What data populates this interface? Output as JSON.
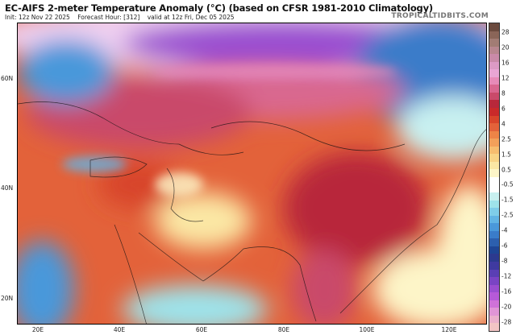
{
  "header": {
    "title": "EC-AIFS 2-meter Temperature Anomaly (°C) (based on CFSR 1981-2010 Climatology)",
    "init": "Init: 12z Nov 22 2025",
    "forecast_hour": "Forecast Hour: [312]",
    "valid": "valid at 12z Fri, Dec 05 2025",
    "brand": "TROPICALTIDBITS.COM"
  },
  "map": {
    "lat_labels": [
      "60N",
      "40N",
      "20N"
    ],
    "lon_labels": [
      "20E",
      "40E",
      "60E",
      "80E",
      "100E",
      "120E"
    ]
  },
  "colorbar": {
    "labels": [
      "28",
      "20",
      "16",
      "12",
      "8",
      "6",
      "4",
      "2.5",
      "1.5",
      "0.5",
      "-0.5",
      "-1.5",
      "-2.5",
      "-4",
      "-6",
      "-8",
      "-12",
      "-16",
      "-20",
      "-28"
    ],
    "colors": [
      "#6b4a3e",
      "#8a6558",
      "#a27c74",
      "#b8868f",
      "#c98aa8",
      "#dc9ac4",
      "#e9a6d4",
      "#e78bb8",
      "#d9678f",
      "#c94a6a",
      "#b8283b",
      "#c92a2a",
      "#d8452b",
      "#e3623a",
      "#ee8447",
      "#f3a05a",
      "#f7bd6f",
      "#f9d486",
      "#fbe7a4",
      "#fdf5c8",
      "#ffffff",
      "#ffffff",
      "#c8f0f0",
      "#9ee3ea",
      "#7fcde9",
      "#62b4e4",
      "#4a98da",
      "#3a7cc9",
      "#2c5fae",
      "#1f4595",
      "#2c3a8f",
      "#3f3aa0",
      "#5a3fb4",
      "#7a44c4",
      "#9a4ed0",
      "#b65ad8",
      "#cf72d8",
      "#e095d6",
      "#eab0cc",
      "#f2c4c4"
    ]
  },
  "colors": {
    "warm": "#d8452b",
    "cold": "#3a7cc9",
    "extreme_cold": "#7a44c4"
  }
}
